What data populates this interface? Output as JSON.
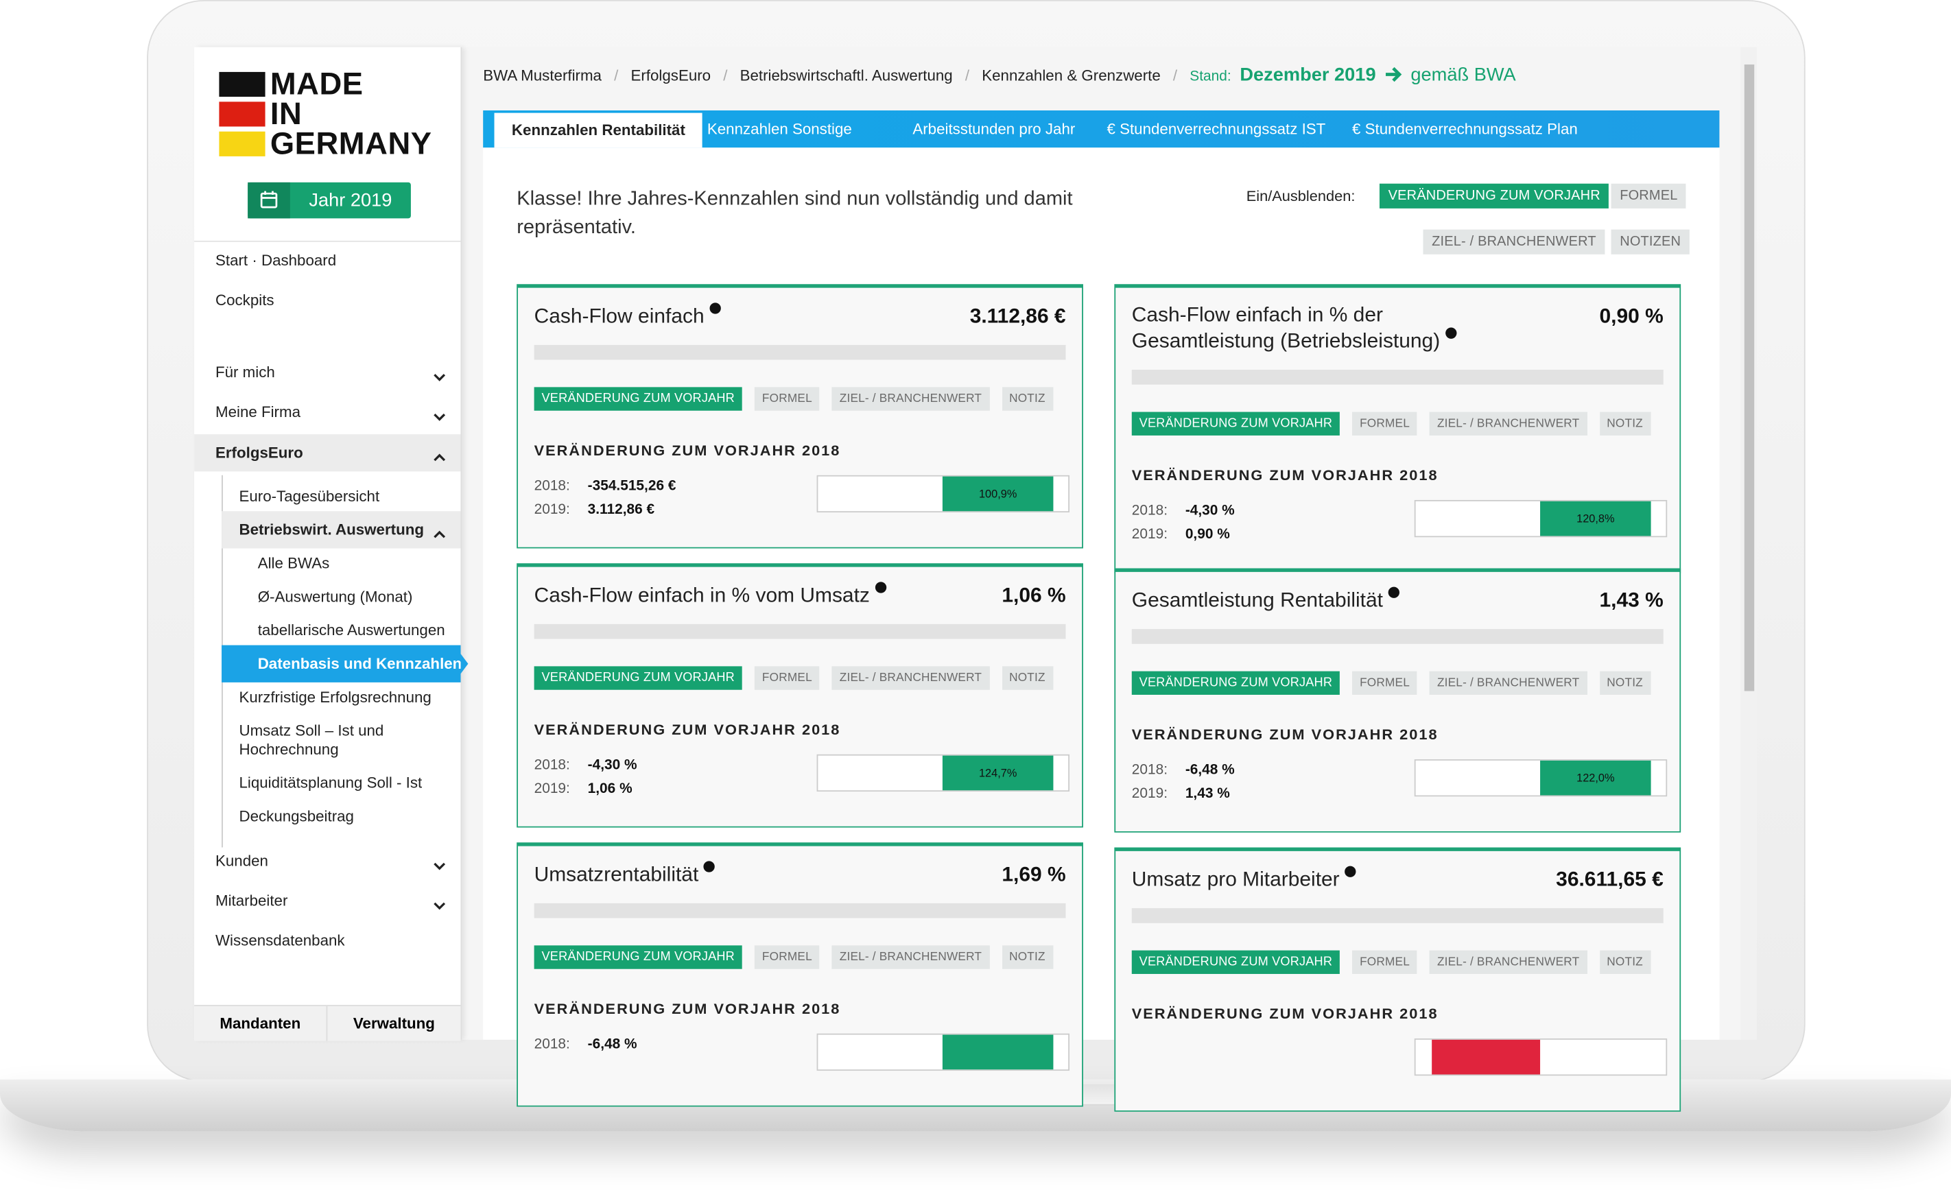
{
  "logo": [
    "MADE",
    "IN",
    "GERMANY"
  ],
  "year_button": "Jahr 2019",
  "sidebar": {
    "nav": [
      "Start · Dashboard",
      "Cockpits",
      "Für mich",
      "Meine Firma",
      "ErfolgsEuro",
      "Euro-Tagesübersicht",
      "Betriebswirt. Auswertung",
      "Alle BWAs",
      "Ø-Auswertung (Monat)",
      "tabellarische Auswertungen",
      "Datenbasis und Kennzahlen",
      "Kurzfristige Erfolgsrechnung",
      "Umsatz Soll – Ist und Hochrechnung",
      "Liquiditätsplanung Soll - Ist",
      "Deckungsbeitrag",
      "Kunden",
      "Mitarbeiter",
      "Wissensdatenbank"
    ],
    "footer": [
      "Mandanten",
      "Verwaltung"
    ]
  },
  "breadcrumb": [
    "BWA Musterfirma",
    "ErfolgsEuro",
    "Betriebswirtschaftl. Auswertung",
    "Kennzahlen & Grenzwerte"
  ],
  "stand": {
    "label": "Stand:",
    "value": "Dezember 2019",
    "basis": "gemäß BWA"
  },
  "tabs": [
    "Kennzahlen Rentabilität",
    "Kennzahlen Sonstige",
    "Arbeitsstunden pro Jahr",
    "€ Stundenverrechnungssatz IST",
    "€ Stundenverrechnungssatz Plan"
  ],
  "message": "Klasse! Ihre Jahres-Kennzahlen sind nun vollständig und damit repräsentativ.",
  "toggle_label": "Ein/Ausblenden:",
  "toggles": [
    "VERÄNDERUNG ZUM VORJAHR",
    "FORMEL",
    "ZIEL- / BRANCHENWERT",
    "NOTIZEN"
  ],
  "cards": [
    {
      "title": "Cash-Flow einfach",
      "value": "3.112,86 €",
      "tags": [
        "VERÄNDERUNG ZUM VORJAHR",
        "FORMEL",
        "ZIEL- / BRANCHENWERT",
        "NOTIZ"
      ],
      "section": "VERÄNDERUNG ZUM VORJAHR 2018",
      "rows": [
        [
          "2018:",
          "-354.515,26 €"
        ],
        [
          "2019:",
          "3.112,86 €"
        ]
      ],
      "bar_label": "100,9%"
    },
    {
      "title": "Cash-Flow einfach in % der Gesamtleistung (Betriebsleistung)",
      "value": "0,90 %",
      "tags": [
        "VERÄNDERUNG ZUM VORJAHR",
        "FORMEL",
        "ZIEL- / BRANCHENWERT",
        "NOTIZ"
      ],
      "section": "VERÄNDERUNG ZUM VORJAHR 2018",
      "rows": [
        [
          "2018:",
          "-4,30 %"
        ],
        [
          "2019:",
          "0,90 %"
        ]
      ],
      "bar_label": "120,8%"
    },
    {
      "title": "Cash-Flow einfach in % vom Umsatz",
      "value": "1,06 %",
      "tags": [
        "VERÄNDERUNG ZUM VORJAHR",
        "FORMEL",
        "ZIEL- / BRANCHENWERT",
        "NOTIZ"
      ],
      "section": "VERÄNDERUNG ZUM VORJAHR 2018",
      "rows": [
        [
          "2018:",
          "-4,30 %"
        ],
        [
          "2019:",
          "1,06 %"
        ]
      ],
      "bar_label": "124,7%"
    },
    {
      "title": "Gesamtleistung Rentabilität",
      "value": "1,43 %",
      "tags": [
        "VERÄNDERUNG ZUM VORJAHR",
        "FORMEL",
        "ZIEL- / BRANCHENWERT",
        "NOTIZ"
      ],
      "section": "VERÄNDERUNG ZUM VORJAHR 2018",
      "rows": [
        [
          "2018:",
          "-6,48 %"
        ],
        [
          "2019:",
          "1,43 %"
        ]
      ],
      "bar_label": "122,0%"
    },
    {
      "title": "Umsatzrentabilität",
      "value": "1,69 %",
      "tags": [
        "VERÄNDERUNG ZUM VORJAHR",
        "FORMEL",
        "ZIEL- / BRANCHENWERT",
        "NOTIZ"
      ],
      "section": "VERÄNDERUNG ZUM VORJAHR 2018",
      "rows": [
        [
          "2018:",
          "-6,48 %"
        ]
      ]
    },
    {
      "title": "Umsatz pro Mitarbeiter",
      "value": "36.611,65 €",
      "tags": [
        "VERÄNDERUNG ZUM VORJAHR",
        "FORMEL",
        "ZIEL- / BRANCHENWERT",
        "NOTIZ"
      ],
      "section": "VERÄNDERUNG ZUM VORJAHR 2018",
      "rows": []
    }
  ]
}
